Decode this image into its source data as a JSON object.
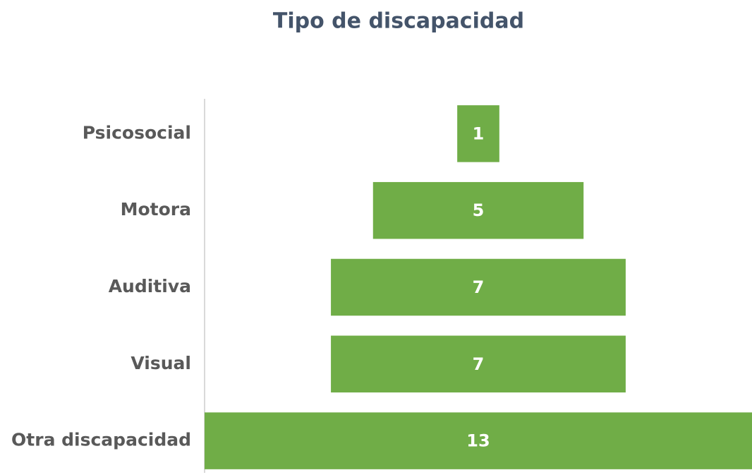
{
  "chart_data": {
    "type": "funnel",
    "title": "Tipo de discapacidad",
    "categories": [
      "Psicosocial",
      "Motora",
      "Auditiva",
      "Visual",
      "Otra discapacidad"
    ],
    "values": [
      1,
      5,
      7,
      7,
      13
    ],
    "color": "#70ad47"
  }
}
